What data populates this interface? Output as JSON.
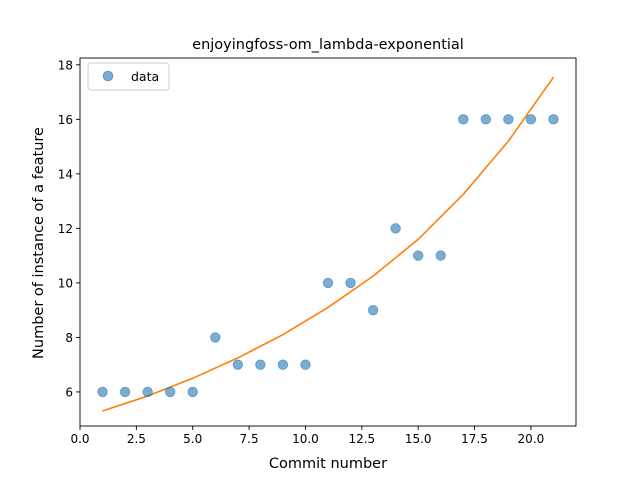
{
  "chart_data": {
    "type": "scatter",
    "title": "enjoyingfoss-om_lambda-exponential",
    "xlabel": "Commit number",
    "ylabel": "Number of instance of a feature",
    "xlim": [
      0.0,
      22.0
    ],
    "ylim": [
      4.75,
      18.25
    ],
    "xticks": [
      0.0,
      2.5,
      5.0,
      7.5,
      10.0,
      12.5,
      15.0,
      17.5,
      20.0
    ],
    "xtick_labels": [
      "0.0",
      "2.5",
      "5.0",
      "7.5",
      "10.0",
      "12.5",
      "15.0",
      "17.5",
      "20.0"
    ],
    "yticks": [
      6,
      8,
      10,
      12,
      14,
      16,
      18
    ],
    "ytick_labels": [
      "6",
      "8",
      "10",
      "12",
      "14",
      "16",
      "18"
    ],
    "grid": false,
    "legend": {
      "position": "top-left",
      "entries": [
        "data"
      ]
    },
    "series": [
      {
        "name": "data",
        "kind": "scatter",
        "color": "#1f77b4",
        "x": [
          1,
          2,
          3,
          4,
          5,
          6,
          7,
          8,
          9,
          10,
          11,
          12,
          13,
          14,
          15,
          16,
          17,
          18,
          19,
          20,
          21
        ],
        "y": [
          6,
          6,
          6,
          6,
          6,
          8,
          7,
          7,
          7,
          7,
          10,
          10,
          9,
          12,
          11,
          11,
          16,
          16,
          16,
          16,
          16
        ]
      },
      {
        "kind": "line",
        "color": "#ff7f0e",
        "x": [
          1,
          3,
          5,
          7,
          9,
          11,
          13,
          15,
          17,
          19,
          21
        ],
        "y": [
          5.3,
          5.85,
          6.5,
          7.25,
          8.1,
          9.1,
          10.25,
          11.6,
          13.25,
          15.2,
          17.55
        ]
      }
    ]
  }
}
